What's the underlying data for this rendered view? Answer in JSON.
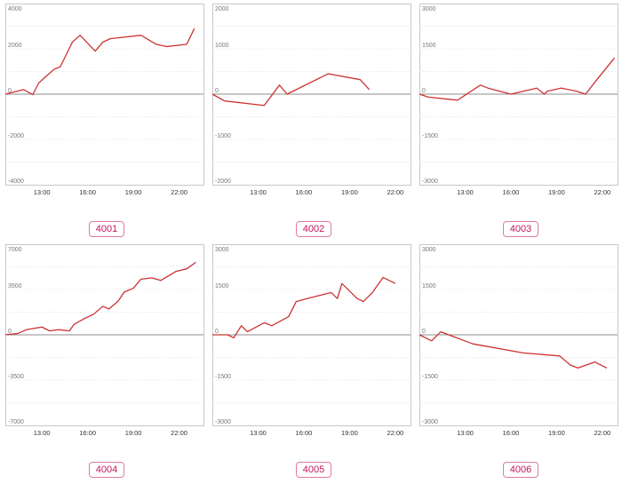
{
  "colors": {
    "series": "#cc3333",
    "badge_border": "#e07aa0",
    "badge_text": "#c2185b"
  },
  "chart_data": [
    {
      "type": "line",
      "label": "4001",
      "ylim": [
        -4000,
        4000
      ],
      "yticks": [
        4000,
        2000,
        0,
        -2000,
        -4000
      ],
      "xticks": [
        {
          "hour": 13,
          "label": "13:00"
        },
        {
          "hour": 16,
          "label": "16:00"
        },
        {
          "hour": 19,
          "label": "19:00"
        },
        {
          "hour": 22,
          "label": "22:00"
        }
      ],
      "xlim": [
        10.6,
        23.6
      ],
      "grid": true,
      "x": [
        10.6,
        11.8,
        12.4,
        12.8,
        13.3,
        13.8,
        14.2,
        15.0,
        15.5,
        16.5,
        17.0,
        17.5,
        19.5,
        20.5,
        21.2,
        22.5,
        23.0
      ],
      "y": [
        0,
        200,
        -20,
        500,
        800,
        1100,
        1200,
        2300,
        2600,
        1900,
        2300,
        2450,
        2600,
        2200,
        2100,
        2200,
        2900
      ]
    },
    {
      "type": "line",
      "label": "4002",
      "ylim": [
        -2000,
        2000
      ],
      "yticks": [
        2000,
        1000,
        0,
        -1000,
        -2000
      ],
      "xticks": [
        {
          "hour": 13,
          "label": "13:00"
        },
        {
          "hour": 16,
          "label": "16:00"
        },
        {
          "hour": 19,
          "label": "19:00"
        },
        {
          "hour": 22,
          "label": "22:00"
        }
      ],
      "xlim": [
        10.0,
        23.0
      ],
      "grid": true,
      "x": [
        10.0,
        10.8,
        13.4,
        14.4,
        14.9,
        17.6,
        19.7,
        20.3
      ],
      "y": [
        0,
        -150,
        -250,
        200,
        0,
        450,
        320,
        100
      ]
    },
    {
      "type": "line",
      "label": "4003",
      "ylim": [
        -3000,
        3000
      ],
      "yticks": [
        3000,
        1500,
        0,
        -1500,
        -3000
      ],
      "xticks": [
        {
          "hour": 13,
          "label": "13:00"
        },
        {
          "hour": 16,
          "label": "16:00"
        },
        {
          "hour": 19,
          "label": "19:00"
        },
        {
          "hour": 22,
          "label": "22:00"
        }
      ],
      "xlim": [
        10.0,
        23.0
      ],
      "grid": true,
      "x": [
        10.0,
        10.6,
        12.5,
        14.0,
        14.5,
        16.0,
        17.7,
        18.2,
        18.4,
        19.3,
        20.3,
        20.9,
        21.6,
        22.8
      ],
      "y": [
        0,
        -100,
        -200,
        300,
        200,
        0,
        200,
        0,
        100,
        200,
        100,
        0,
        450,
        1200
      ]
    },
    {
      "type": "line",
      "label": "4004",
      "ylim": [
        -7000,
        7000
      ],
      "yticks": [
        7000,
        3500,
        0,
        -3500,
        -7000
      ],
      "xticks": [
        {
          "hour": 13,
          "label": "13:00"
        },
        {
          "hour": 16,
          "label": "16:00"
        },
        {
          "hour": 19,
          "label": "19:00"
        },
        {
          "hour": 22,
          "label": "22:00"
        }
      ],
      "xlim": [
        10.6,
        23.6
      ],
      "grid": true,
      "x": [
        10.6,
        11.4,
        12.0,
        13.0,
        13.5,
        14.1,
        14.8,
        15.1,
        15.7,
        16.4,
        17.0,
        17.4,
        18.0,
        18.4,
        19.0,
        19.5,
        20.2,
        20.8,
        21.8,
        22.5,
        23.1
      ],
      "y": [
        0,
        100,
        400,
        600,
        300,
        400,
        300,
        800,
        1200,
        1600,
        2200,
        2000,
        2600,
        3300,
        3600,
        4300,
        4400,
        4200,
        4900,
        5100,
        5600
      ]
    },
    {
      "type": "line",
      "label": "4005",
      "ylim": [
        -3000,
        3000
      ],
      "yticks": [
        3000,
        1500,
        0,
        -1500,
        -3000
      ],
      "xticks": [
        {
          "hour": 13,
          "label": "13:00"
        },
        {
          "hour": 16,
          "label": "16:00"
        },
        {
          "hour": 19,
          "label": "19:00"
        },
        {
          "hour": 22,
          "label": "22:00"
        }
      ],
      "xlim": [
        10.0,
        23.0
      ],
      "grid": true,
      "x": [
        10.0,
        11.0,
        11.4,
        11.9,
        12.3,
        13.4,
        13.9,
        15.0,
        15.5,
        16.2,
        17.8,
        18.2,
        18.5,
        19.5,
        19.9,
        20.5,
        21.2,
        22.0
      ],
      "y": [
        0,
        0,
        -100,
        300,
        100,
        400,
        300,
        600,
        1100,
        1200,
        1400,
        1200,
        1700,
        1200,
        1100,
        1400,
        1900,
        1700
      ]
    },
    {
      "type": "line",
      "label": "4006",
      "ylim": [
        -3000,
        3000
      ],
      "yticks": [
        3000,
        1500,
        0,
        -1500,
        -3000
      ],
      "xticks": [
        {
          "hour": 13,
          "label": "13:00"
        },
        {
          "hour": 16,
          "label": "16:00"
        },
        {
          "hour": 19,
          "label": "19:00"
        },
        {
          "hour": 22,
          "label": "22:00"
        }
      ],
      "xlim": [
        10.0,
        23.0
      ],
      "grid": true,
      "x": [
        10.0,
        10.8,
        11.4,
        13.5,
        16.8,
        19.2,
        19.9,
        20.4,
        21.5,
        22.3
      ],
      "y": [
        0,
        -200,
        100,
        -300,
        -600,
        -700,
        -1000,
        -1100,
        -900,
        -1100
      ]
    }
  ]
}
